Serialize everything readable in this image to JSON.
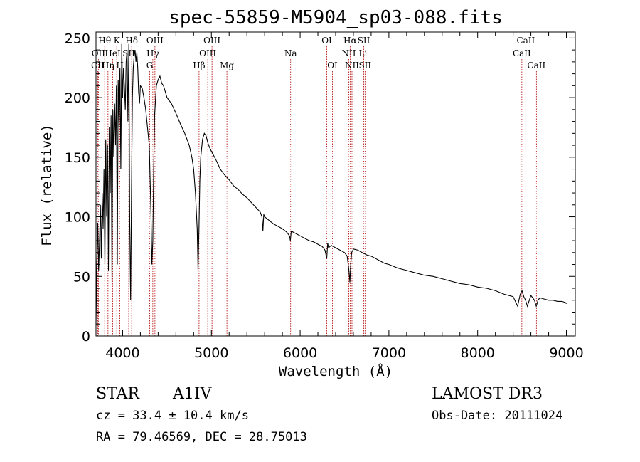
{
  "chart_data": {
    "type": "line",
    "title": "spec-55859-M5904_sp03-088.fits",
    "xlabel": "Wavelength (Å)",
    "ylabel": "Flux (relative)",
    "xlim": [
      3700,
      9100
    ],
    "ylim": [
      0,
      255
    ],
    "xticks": [
      4000,
      5000,
      6000,
      7000,
      8000,
      9000
    ],
    "yticks": [
      0,
      50,
      100,
      150,
      200,
      250
    ],
    "spectrum": {
      "name": "flux",
      "x": [
        3700,
        3710,
        3720,
        3730,
        3740,
        3750,
        3760,
        3770,
        3780,
        3790,
        3800,
        3810,
        3820,
        3830,
        3840,
        3850,
        3860,
        3870,
        3880,
        3890,
        3900,
        3910,
        3920,
        3930,
        3940,
        3950,
        3960,
        3970,
        3980,
        3990,
        4000,
        4010,
        4020,
        4030,
        4040,
        4050,
        4060,
        4070,
        4080,
        4090,
        4100,
        4110,
        4120,
        4130,
        4140,
        4150,
        4160,
        4170,
        4180,
        4190,
        4200,
        4220,
        4240,
        4260,
        4280,
        4300,
        4320,
        4330,
        4340,
        4350,
        4360,
        4380,
        4400,
        4420,
        4440,
        4460,
        4480,
        4500,
        4550,
        4600,
        4650,
        4700,
        4750,
        4780,
        4800,
        4820,
        4840,
        4850,
        4860,
        4870,
        4880,
        4900,
        4920,
        4940,
        4960,
        4980,
        5000,
        5050,
        5100,
        5150,
        5200,
        5250,
        5300,
        5350,
        5400,
        5450,
        5500,
        5550,
        5570,
        5580,
        5590,
        5600,
        5650,
        5700,
        5750,
        5800,
        5850,
        5880,
        5890,
        5900,
        5950,
        6000,
        6050,
        6100,
        6150,
        6200,
        6250,
        6280,
        6300,
        6310,
        6320,
        6350,
        6400,
        6450,
        6500,
        6530,
        6550,
        6560,
        6570,
        6580,
        6600,
        6650,
        6700,
        6750,
        6800,
        6850,
        6900,
        6950,
        7000,
        7100,
        7200,
        7300,
        7400,
        7500,
        7600,
        7700,
        7800,
        7900,
        8000,
        8100,
        8200,
        8300,
        8400,
        8450,
        8480,
        8500,
        8520,
        8540,
        8560,
        8600,
        8640,
        8660,
        8680,
        8700,
        8750,
        8800,
        8850,
        8900,
        8950,
        8990,
        9000
      ],
      "y": [
        10,
        60,
        95,
        55,
        80,
        110,
        65,
        120,
        90,
        140,
        60,
        165,
        100,
        160,
        55,
        175,
        120,
        185,
        45,
        190,
        150,
        195,
        160,
        210,
        60,
        215,
        175,
        225,
        140,
        245,
        200,
        225,
        210,
        190,
        230,
        240,
        180,
        245,
        100,
        30,
        120,
        200,
        225,
        235,
        240,
        230,
        238,
        225,
        205,
        195,
        210,
        208,
        200,
        190,
        175,
        160,
        100,
        60,
        80,
        140,
        185,
        210,
        215,
        218,
        212,
        210,
        205,
        200,
        195,
        187,
        178,
        170,
        160,
        150,
        140,
        120,
        90,
        55,
        90,
        130,
        150,
        165,
        170,
        168,
        162,
        158,
        155,
        148,
        140,
        135,
        131,
        126,
        123,
        119,
        116,
        112,
        108,
        104,
        100,
        88,
        102,
        100,
        97,
        94,
        92,
        90,
        87,
        84,
        80,
        88,
        86,
        84,
        82,
        80,
        79,
        77,
        75,
        72,
        65,
        78,
        74,
        76,
        74,
        72,
        70,
        67,
        55,
        45,
        60,
        70,
        73,
        72,
        70,
        68,
        67,
        65,
        63,
        61,
        60,
        57,
        55,
        53,
        51,
        50,
        48,
        46,
        44,
        43,
        41,
        40,
        38,
        35,
        33,
        25,
        35,
        38,
        33,
        30,
        25,
        34,
        30,
        25,
        30,
        32,
        31,
        30,
        30,
        29,
        29,
        28,
        27
      ]
    },
    "spectral_lines": [
      {
        "label": "Hθ",
        "wavelength": 3798,
        "row": 1
      },
      {
        "label": "OII",
        "wavelength": 3727,
        "row": 2
      },
      {
        "label": "CII",
        "wavelength": 3719,
        "row": 3
      },
      {
        "label": "K",
        "wavelength": 3934,
        "row": 1
      },
      {
        "label": "HeI",
        "wavelength": 3889,
        "row": 2
      },
      {
        "label": "Hη",
        "wavelength": 3835,
        "row": 3
      },
      {
        "label": "Hδ",
        "wavelength": 4102,
        "row": 1
      },
      {
        "label": "SII",
        "wavelength": 4069,
        "row": 2
      },
      {
        "label": "H",
        "wavelength": 3969,
        "row": 3
      },
      {
        "label": "OIII",
        "wavelength": 4364,
        "row": 1
      },
      {
        "label": "Hγ",
        "wavelength": 4340,
        "row": 2
      },
      {
        "label": "G",
        "wavelength": 4305,
        "row": 3
      },
      {
        "label": "OIII",
        "wavelength": 5007,
        "row": 1
      },
      {
        "label": "OIII",
        "wavelength": 4959,
        "row": 2
      },
      {
        "label": "Hβ",
        "wavelength": 4861,
        "row": 3
      },
      {
        "label": "Mg",
        "wavelength": 5175,
        "row": 3
      },
      {
        "label": "Na",
        "wavelength": 5893,
        "row": 2
      },
      {
        "label": "OI",
        "wavelength": 6300,
        "row": 1
      },
      {
        "label": "OI",
        "wavelength": 6364,
        "row": 3
      },
      {
        "label": "Hα",
        "wavelength": 6563,
        "row": 1
      },
      {
        "label": "NII",
        "wavelength": 6548,
        "row": 2
      },
      {
        "label": "NII",
        "wavelength": 6584,
        "row": 3
      },
      {
        "label": "SII",
        "wavelength": 6717,
        "row": 1
      },
      {
        "label": "Li",
        "wavelength": 6708,
        "row": 2
      },
      {
        "label": "SII",
        "wavelength": 6731,
        "row": 3
      },
      {
        "label": "CaII",
        "wavelength": 8542,
        "row": 1
      },
      {
        "label": "CaII",
        "wavelength": 8498,
        "row": 2
      },
      {
        "label": "CaII",
        "wavelength": 8662,
        "row": 3
      }
    ]
  },
  "info": {
    "class_label": "STAR",
    "subclass": "A1IV",
    "survey": "LAMOST DR3",
    "redshift": "cz = 33.4 ± 10.4 km/s",
    "obs_date": "Obs-Date: 20111024",
    "coords": "RA =  79.46569, DEC =  28.75013"
  }
}
